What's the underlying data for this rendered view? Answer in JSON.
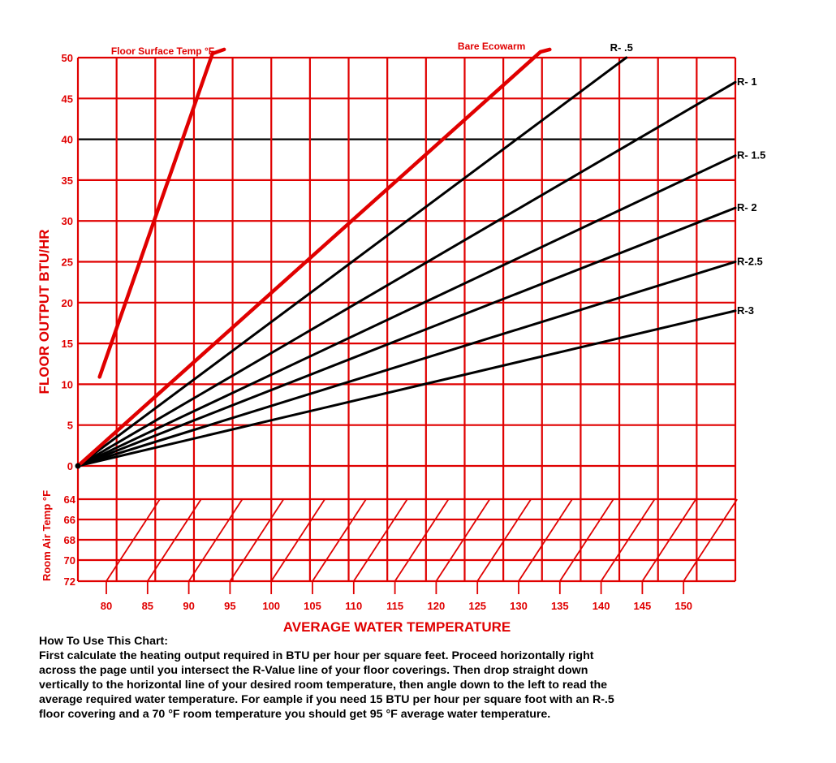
{
  "chart_data": {
    "type": "line",
    "xlabel": "AVERAGE WATER TEMPERATURE",
    "ylabel": "FLOOR OUTPUT BTU/HR",
    "x_ticks": [
      "80",
      "85",
      "90",
      "95",
      "100",
      "105",
      "110",
      "115",
      "120",
      "125",
      "130",
      "135",
      "140",
      "145",
      "150"
    ],
    "y_ticks": [
      "0",
      "5",
      "10",
      "15",
      "20",
      "25",
      "30",
      "35",
      "40",
      "45",
      "50"
    ],
    "room_axis_label": "Room Air Temp °F",
    "room_ticks": [
      "64",
      "66",
      "68",
      "70",
      "72"
    ],
    "series": [
      {
        "name": "R- .5",
        "x": [
          75,
          145.9
        ],
        "y": [
          0,
          50
        ],
        "color": "#000000"
      },
      {
        "name": "R- 1",
        "x": [
          75,
          160
        ],
        "y": [
          0,
          47
        ],
        "color": "#000000"
      },
      {
        "name": "R- 1.5",
        "x": [
          75,
          160
        ],
        "y": [
          0,
          38
        ],
        "color": "#000000"
      },
      {
        "name": "R- 2",
        "x": [
          75,
          160
        ],
        "y": [
          0,
          31.6
        ],
        "color": "#000000"
      },
      {
        "name": "R-2.5",
        "x": [
          75,
          160
        ],
        "y": [
          0,
          25
        ],
        "color": "#000000"
      },
      {
        "name": "R-3",
        "x": [
          75,
          160
        ],
        "y": [
          0,
          19
        ],
        "color": "#000000"
      },
      {
        "name": "Bare Ecowarm",
        "x": [
          75,
          134.8,
          136
        ],
        "y": [
          0,
          50.7,
          51
        ],
        "color": "#e00000"
      },
      {
        "name": "Floor Surface Temp °F",
        "x": [
          77.8,
          92.4,
          93.9
        ],
        "y": [
          10.9,
          50.5,
          51
        ],
        "color": "#e00000"
      }
    ],
    "xlim": [
      75,
      160
    ],
    "ylim": [
      0,
      50
    ],
    "grid": true,
    "accent_color": "#e00000"
  },
  "instructions": {
    "heading": "How To Use This Chart:",
    "lines": [
      "First calculate the heating output required in BTU per hour per square feet. Proceed horizontally right",
      "across the page until you intersect the R-Value line of your floor coverings. Then drop straight down",
      "vertically  to the horizontal line of your desired room temperature, then angle down to the left to read the",
      "average required water temperature. For eample if you need 15 BTU per hour per square foot with  an R-.5",
      "floor covering and a 70 °F room temperature you should get 95 °F average water temperature."
    ]
  }
}
